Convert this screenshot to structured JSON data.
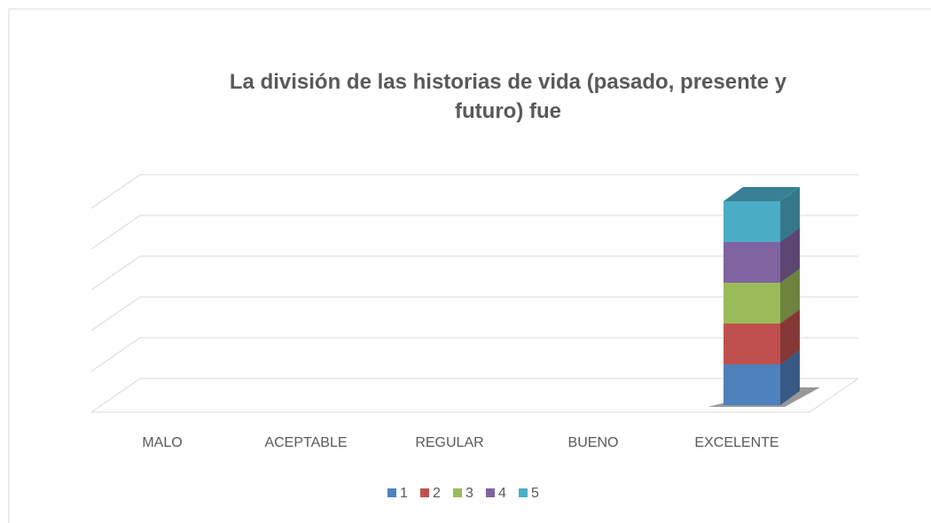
{
  "chart_data": {
    "type": "bar3d_stacked",
    "title": "La división de las historias de vida (pasado, presente y futuro) fue",
    "categories": [
      "MALO",
      "ACEPTABLE",
      "REGULAR",
      "BUENO",
      "EXCELENTE"
    ],
    "series": [
      {
        "name": "1",
        "color": "#4f81bd",
        "values": [
          0,
          0,
          0,
          0,
          1
        ]
      },
      {
        "name": "2",
        "color": "#c0504d",
        "values": [
          0,
          0,
          0,
          0,
          1
        ]
      },
      {
        "name": "3",
        "color": "#9bbb59",
        "values": [
          0,
          0,
          0,
          0,
          1
        ]
      },
      {
        "name": "4",
        "color": "#8064a2",
        "values": [
          0,
          0,
          0,
          0,
          1
        ]
      },
      {
        "name": "5",
        "color": "#4bacc6",
        "values": [
          0,
          0,
          0,
          0,
          1
        ]
      }
    ],
    "ylim": [
      0,
      5
    ],
    "yticks": [
      0,
      1,
      2,
      3,
      4,
      5
    ],
    "grid": true,
    "legend": "bottom"
  }
}
